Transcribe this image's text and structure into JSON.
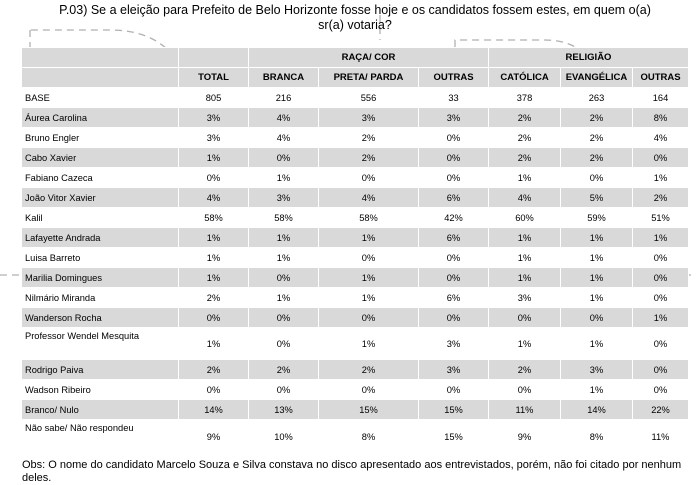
{
  "title": {
    "line1": "P.03) Se a eleição para Prefeito de Belo Horizonte fosse hoje e os candidatos fossem estes, em quem o(a)",
    "line2": "sr(a) votaria?"
  },
  "groups": {
    "race": "RAÇA/ COR",
    "religion": "RELIGIÃO"
  },
  "columns": [
    "TOTAL",
    "BRANCA",
    "PRETA/ PARDA",
    "OUTRAS",
    "CATÓLICA",
    "EVANGÉLICA",
    "OUTRAS"
  ],
  "base": {
    "label": "BASE",
    "values": [
      "805",
      "216",
      "556",
      "33",
      "378",
      "263",
      "164"
    ]
  },
  "rows": [
    {
      "label": "Áurea Carolina",
      "values": [
        "3%",
        "4%",
        "3%",
        "3%",
        "2%",
        "2%",
        "8%"
      ]
    },
    {
      "label": "Bruno Engler",
      "values": [
        "3%",
        "4%",
        "2%",
        "0%",
        "2%",
        "2%",
        "4%"
      ]
    },
    {
      "label": "Cabo Xavier",
      "values": [
        "1%",
        "0%",
        "2%",
        "0%",
        "2%",
        "2%",
        "0%"
      ]
    },
    {
      "label": "Fabiano Cazeca",
      "values": [
        "0%",
        "1%",
        "0%",
        "0%",
        "1%",
        "0%",
        "1%"
      ]
    },
    {
      "label": "João Vitor Xavier",
      "values": [
        "4%",
        "3%",
        "4%",
        "6%",
        "4%",
        "5%",
        "2%"
      ]
    },
    {
      "label": "Kalil",
      "values": [
        "58%",
        "58%",
        "58%",
        "42%",
        "60%",
        "59%",
        "51%"
      ]
    },
    {
      "label": "Lafayette Andrada",
      "values": [
        "1%",
        "1%",
        "1%",
        "6%",
        "1%",
        "1%",
        "1%"
      ]
    },
    {
      "label": "Luisa Barreto",
      "values": [
        "1%",
        "1%",
        "0%",
        "0%",
        "1%",
        "1%",
        "0%"
      ]
    },
    {
      "label": "Marilia Domingues",
      "values": [
        "1%",
        "0%",
        "1%",
        "0%",
        "1%",
        "1%",
        "0%"
      ]
    },
    {
      "label": "Nilmário Miranda",
      "values": [
        "2%",
        "1%",
        "1%",
        "6%",
        "3%",
        "1%",
        "0%"
      ]
    },
    {
      "label": "Wanderson Rocha",
      "values": [
        "0%",
        "0%",
        "0%",
        "0%",
        "0%",
        "0%",
        "1%"
      ]
    },
    {
      "label": "Professor Wendel Mesquita",
      "values": [
        "1%",
        "0%",
        "1%",
        "3%",
        "1%",
        "1%",
        "0%"
      ]
    },
    {
      "label": "Rodrigo Paiva",
      "values": [
        "2%",
        "2%",
        "2%",
        "3%",
        "2%",
        "3%",
        "0%"
      ]
    },
    {
      "label": "Wadson Ribeiro",
      "values": [
        "0%",
        "0%",
        "0%",
        "0%",
        "0%",
        "1%",
        "0%"
      ]
    },
    {
      "label": "Branco/ Nulo",
      "values": [
        "14%",
        "13%",
        "15%",
        "15%",
        "11%",
        "14%",
        "22%"
      ]
    },
    {
      "label": "Não sabe/ Não respondeu",
      "values": [
        "9%",
        "10%",
        "8%",
        "15%",
        "9%",
        "8%",
        "11%"
      ]
    }
  ],
  "note": "Obs: O nome do candidato Marcelo Souza e Silva constava no disco apresentado aos entrevistados, porém, não foi citado por nenhum deles."
}
